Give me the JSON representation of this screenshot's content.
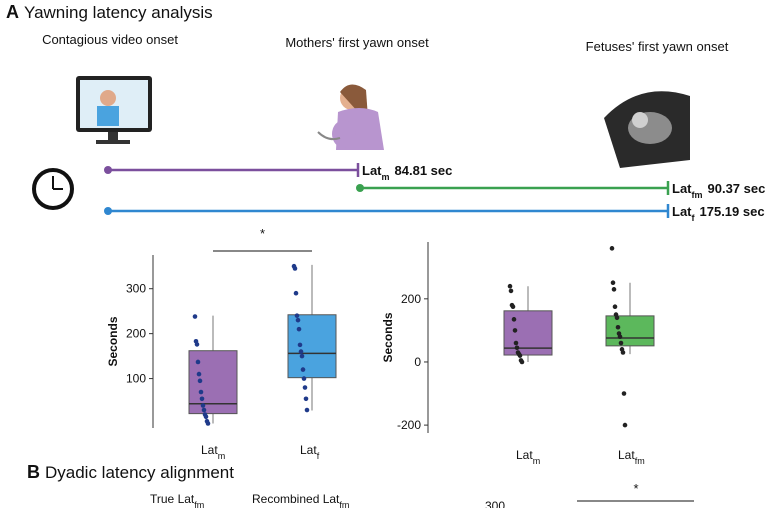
{
  "panel_a": {
    "label": "A",
    "title": "Yawning latency analysis",
    "events": [
      "Contagious video onset",
      "Mothers' first yawn onset",
      "Fetuses' first yawn onset"
    ],
    "latencies": [
      {
        "name": "Lat",
        "sub": "m",
        "text": "84.81 sec",
        "color": "#7b4f9d"
      },
      {
        "name": "Lat",
        "sub": "fm",
        "text": "90.37 sec",
        "color": "#3aa150"
      },
      {
        "name": "Lat",
        "sub": "f",
        "text": "175.19 sec",
        "color": "#2f87d0"
      }
    ]
  },
  "chart_data": [
    {
      "type": "box",
      "ylabel": "Seconds",
      "categories": [
        "Lat",
        "Lat"
      ],
      "category_subscripts": [
        "m",
        "f"
      ],
      "ylim": [
        -10,
        375
      ],
      "yticks": [
        100,
        200,
        300
      ],
      "significance": "*",
      "series": [
        {
          "color": "#9b6fb3",
          "whisker_low": 0,
          "q1": 22,
          "median": 44,
          "q3": 162,
          "whisker_high": 240,
          "points": [
            238,
            183,
            176,
            137,
            110,
            95,
            70,
            55,
            40,
            30,
            20,
            15,
            5,
            0
          ]
        },
        {
          "color": "#4aa3df",
          "whisker_low": 29,
          "q1": 102,
          "median": 156,
          "q3": 242,
          "whisker_high": 353,
          "points": [
            350,
            345,
            290,
            240,
            230,
            210,
            175,
            160,
            150,
            120,
            100,
            80,
            55,
            30
          ]
        }
      ]
    },
    {
      "type": "box",
      "ylabel": "Seconds",
      "categories": [
        "Lat",
        "Lat"
      ],
      "category_subscripts": [
        "m",
        "fm"
      ],
      "ylim": [
        -225,
        380
      ],
      "yticks": [
        -200,
        0,
        200
      ],
      "series": [
        {
          "color": "#9b6fb3",
          "whisker_low": 0,
          "q1": 22,
          "median": 44,
          "q3": 162,
          "whisker_high": 240,
          "points": [
            240,
            225,
            180,
            175,
            135,
            100,
            60,
            45,
            30,
            25,
            20,
            5,
            0
          ]
        },
        {
          "color": "#5cb85c",
          "whisker_low": 25,
          "q1": 51,
          "median": 76,
          "q3": 146,
          "whisker_high": 251,
          "points": [
            360,
            251,
            230,
            175,
            150,
            140,
            110,
            90,
            80,
            60,
            40,
            30,
            -100,
            -200
          ]
        }
      ]
    }
  ],
  "panel_b": {
    "label": "B",
    "title": "Dyadic latency alignment",
    "columns": [
      {
        "name": "True Lat",
        "sub": "fm"
      },
      {
        "name": "Recombined Lat",
        "sub": "fm"
      }
    ],
    "tick": "300",
    "significance": "*"
  }
}
